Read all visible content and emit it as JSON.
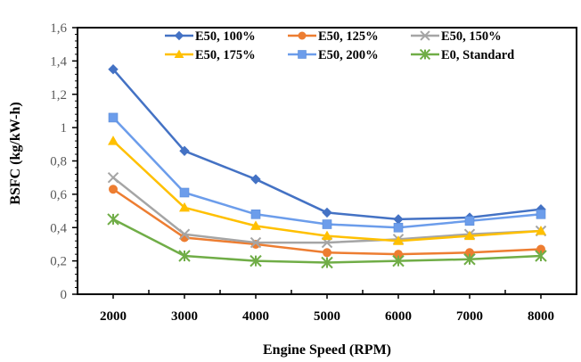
{
  "chart_data": {
    "type": "line",
    "title": "",
    "xlabel": "Engine Speed (RPM)",
    "ylabel": "BSFC (kg/kW-h)",
    "x": [
      2000,
      3000,
      4000,
      5000,
      6000,
      7000,
      8000
    ],
    "x_tick_labels": [
      "2000",
      "3000",
      "4000",
      "5000",
      "6000",
      "7000",
      "8000"
    ],
    "ylim": [
      0,
      1.6
    ],
    "y_ticks": [
      0,
      0.2,
      0.4,
      0.6,
      0.8,
      1.0,
      1.2,
      1.4,
      1.6
    ],
    "y_tick_labels": [
      "0",
      "0,2",
      "0,4",
      "0,6",
      "0,8",
      "1",
      "1,2",
      "1,4",
      "1,6"
    ],
    "grid": false,
    "legend_position": "top-right (inside, 2 rows x 3 columns)",
    "series": [
      {
        "name": "E50, 100%",
        "color": "#4472C4",
        "marker": "diamond",
        "values": [
          1.35,
          0.86,
          0.69,
          0.49,
          0.45,
          0.46,
          0.51
        ]
      },
      {
        "name": "E50, 125%",
        "color": "#ED7D31",
        "marker": "circle",
        "values": [
          0.63,
          0.34,
          0.3,
          0.25,
          0.24,
          0.25,
          0.27
        ]
      },
      {
        "name": "E50, 150%",
        "color": "#A5A5A5",
        "marker": "x",
        "values": [
          0.7,
          0.36,
          0.31,
          0.31,
          0.33,
          0.36,
          0.38
        ]
      },
      {
        "name": "E50, 175%",
        "color": "#FFC000",
        "marker": "triangle",
        "values": [
          0.92,
          0.52,
          0.41,
          0.35,
          0.32,
          0.35,
          0.38
        ]
      },
      {
        "name": "E50, 200%",
        "color": "#6C9DEB",
        "marker": "square",
        "values": [
          1.06,
          0.61,
          0.48,
          0.42,
          0.4,
          0.44,
          0.48
        ]
      },
      {
        "name": "E0, Standard",
        "color": "#70AD47",
        "marker": "star",
        "values": [
          0.45,
          0.23,
          0.2,
          0.19,
          0.2,
          0.21,
          0.23
        ]
      }
    ]
  }
}
